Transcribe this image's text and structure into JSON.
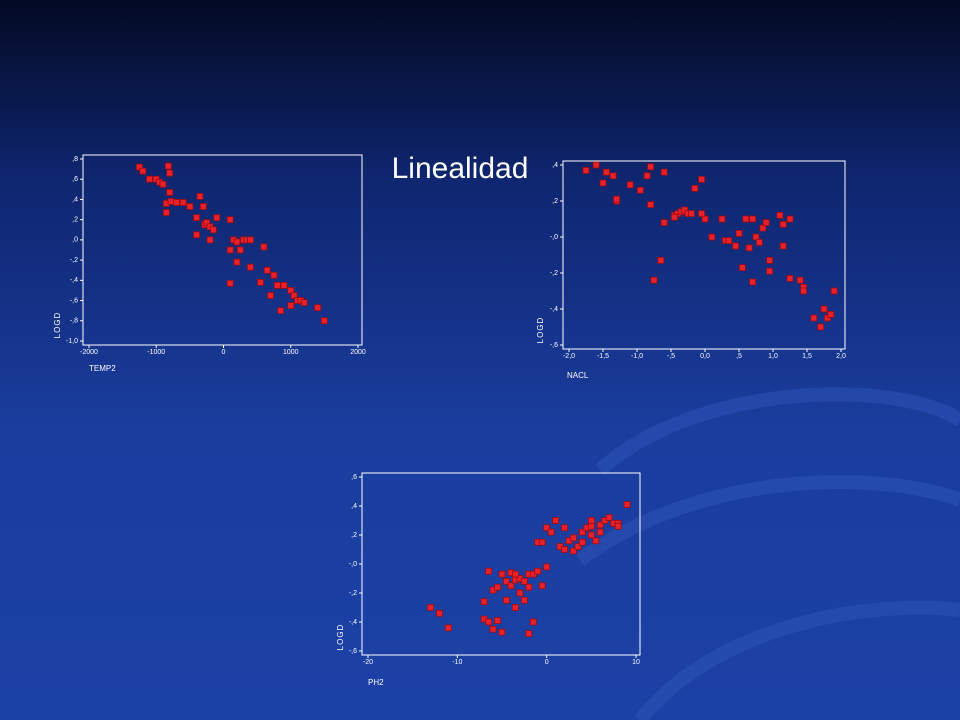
{
  "slide": {
    "title": "Linealidad"
  },
  "chart_data": [
    {
      "type": "scatter",
      "x_label": "TEMP2",
      "y_label": "LOGD",
      "color": "#e8202a",
      "x": [
        -1250,
        -1200,
        -1100,
        -1000,
        -950,
        -900,
        -820,
        -800,
        -850,
        -850,
        -800,
        -780,
        -700,
        -600,
        -500,
        -400,
        -350,
        -300,
        -280,
        -250,
        -200,
        -400,
        -200,
        -100,
        -150,
        100,
        100,
        150,
        200,
        200,
        100,
        250,
        300,
        350,
        400,
        400,
        550,
        600,
        650,
        700,
        750,
        800,
        850,
        900,
        1000,
        1000,
        1050,
        1100,
        1150,
        1200,
        1400,
        1500
      ],
      "values": [
        0.72,
        0.68,
        0.6,
        0.6,
        0.57,
        0.55,
        0.73,
        0.66,
        0.36,
        0.27,
        0.47,
        0.38,
        0.37,
        0.37,
        0.33,
        0.22,
        0.43,
        0.33,
        0.15,
        0.17,
        0.13,
        0.05,
        0.0,
        0.22,
        0.1,
        0.2,
        -0.1,
        0.0,
        -0.02,
        -0.22,
        -0.43,
        -0.1,
        0.0,
        0.0,
        0.0,
        -0.27,
        -0.42,
        -0.07,
        -0.3,
        -0.55,
        -0.35,
        -0.45,
        -0.7,
        -0.45,
        -0.5,
        -0.65,
        -0.55,
        -0.6,
        -0.6,
        -0.62,
        -0.67,
        -0.8
      ],
      "xlim": [
        -2000,
        2000
      ],
      "xticks": [
        -2000,
        -1000,
        0,
        1000,
        2000
      ],
      "ylim": [
        -1.0,
        0.8
      ],
      "yticks": [
        {
          "value": 0.8,
          "label": ",8"
        },
        {
          "value": 0.6,
          "label": ",6"
        },
        {
          "value": 0.4,
          "label": ",4"
        },
        {
          "value": 0.2,
          "label": ",2"
        },
        {
          "value": 0.0,
          "label": ",0"
        },
        {
          "value": -0.2,
          "label": "-,2"
        },
        {
          "value": -0.4,
          "label": "-,4"
        },
        {
          "value": -0.6,
          "label": "-,6"
        },
        {
          "value": -0.8,
          "label": "-,8"
        },
        {
          "value": -1.0,
          "label": "-1,0"
        }
      ]
    },
    {
      "type": "scatter",
      "x_label": "NACL",
      "y_label": "LOGD",
      "color": "#e8202a",
      "x": [
        -1.75,
        -1.6,
        -1.5,
        -1.45,
        -1.35,
        -1.3,
        -1.3,
        -1.1,
        -0.95,
        -0.85,
        -0.8,
        -0.8,
        -0.6,
        -0.6,
        -0.45,
        -0.4,
        -0.35,
        -0.3,
        -0.25,
        -0.2,
        -0.15,
        -0.05,
        -0.45,
        0.0,
        -0.05,
        0.1,
        0.25,
        0.3,
        0.35,
        0.45,
        0.5,
        0.6,
        0.65,
        0.7,
        0.75,
        0.8,
        0.85,
        0.9,
        0.55,
        0.7,
        0.95,
        0.95,
        1.1,
        1.15,
        1.15,
        1.25,
        1.25,
        1.4,
        -0.65,
        -0.75,
        1.45,
        1.45,
        1.6,
        1.7,
        1.75,
        1.8,
        1.85,
        1.9
      ],
      "values": [
        0.37,
        0.4,
        0.3,
        0.36,
        0.34,
        0.2,
        0.21,
        0.29,
        0.26,
        0.34,
        0.39,
        0.18,
        0.36,
        0.08,
        0.12,
        0.13,
        0.14,
        0.15,
        0.13,
        0.13,
        0.27,
        0.32,
        0.11,
        0.1,
        0.13,
        0.0,
        0.1,
        -0.02,
        -0.02,
        -0.05,
        0.02,
        0.1,
        -0.06,
        0.1,
        0.0,
        -0.03,
        0.05,
        0.08,
        -0.17,
        -0.25,
        -0.13,
        -0.19,
        0.12,
        0.07,
        -0.05,
        -0.23,
        0.1,
        -0.24,
        -0.13,
        -0.24,
        -0.28,
        -0.3,
        -0.45,
        -0.5,
        -0.4,
        -0.45,
        -0.43,
        -0.3
      ],
      "xlim": [
        -2.0,
        2.0
      ],
      "xticks": [
        {
          "value": -2.0,
          "label": "-2,0"
        },
        {
          "value": -1.5,
          "label": "-1,5"
        },
        {
          "value": -1.0,
          "label": "-1,0"
        },
        {
          "value": -0.5,
          "label": "-,5"
        },
        {
          "value": 0.0,
          "label": "0,0"
        },
        {
          "value": 0.5,
          "label": ",5"
        },
        {
          "value": 1.0,
          "label": "1,0"
        },
        {
          "value": 1.5,
          "label": "1,5"
        },
        {
          "value": 2.0,
          "label": "2,0"
        }
      ],
      "ylim": [
        -0.6,
        0.4
      ],
      "yticks": [
        {
          "value": 0.4,
          "label": ",4"
        },
        {
          "value": 0.2,
          "label": ",2"
        },
        {
          "value": 0.0,
          "label": "-,0"
        },
        {
          "value": -0.2,
          "label": "-,2"
        },
        {
          "value": -0.4,
          "label": "-,4"
        },
        {
          "value": -0.6,
          "label": "-,6"
        }
      ]
    },
    {
      "type": "scatter",
      "x_label": "PH2",
      "y_label": "LOGD",
      "color": "#e8202a",
      "x": [
        -13,
        -12,
        -11,
        -7,
        -7,
        -6.5,
        -6,
        -5.5,
        -5,
        -6.5,
        -6,
        -5.5,
        -5,
        -4.5,
        -4,
        -4,
        -3.5,
        -3,
        -3,
        -2.5,
        -2,
        -2,
        -1.5,
        -1,
        -1,
        -0.5,
        -1.5,
        -3.5,
        -2.5,
        0,
        0,
        0.5,
        1,
        1.5,
        2,
        2.5,
        3,
        3,
        3.5,
        4,
        4,
        4.5,
        5,
        5,
        5.5,
        6,
        6,
        6.5,
        7,
        7.5,
        8,
        8,
        9,
        -0.5,
        -2,
        -4.5,
        -3.5,
        5,
        2
      ],
      "values": [
        -0.3,
        -0.34,
        -0.44,
        -0.26,
        -0.38,
        -0.4,
        -0.45,
        -0.39,
        -0.47,
        -0.05,
        -0.18,
        -0.16,
        -0.07,
        -0.12,
        -0.06,
        -0.15,
        -0.11,
        -0.1,
        -0.2,
        -0.12,
        -0.16,
        -0.07,
        -0.07,
        -0.05,
        0.15,
        0.15,
        -0.4,
        -0.3,
        -0.25,
        0.25,
        -0.02,
        0.22,
        0.3,
        0.12,
        0.1,
        0.16,
        0.09,
        0.18,
        0.12,
        0.15,
        0.22,
        0.25,
        0.26,
        0.3,
        0.16,
        0.22,
        0.27,
        0.3,
        0.32,
        0.28,
        0.28,
        0.26,
        0.41,
        -0.15,
        -0.48,
        -0.25,
        -0.07,
        0.2,
        0.25
      ],
      "xlim": [
        -20,
        10
      ],
      "xticks": [
        -20,
        -10,
        0,
        10
      ],
      "ylim": [
        -0.6,
        0.6
      ],
      "yticks": [
        {
          "value": 0.6,
          "label": ",6"
        },
        {
          "value": 0.4,
          "label": ",4"
        },
        {
          "value": 0.2,
          "label": ",2"
        },
        {
          "value": 0.0,
          "label": "-,0"
        },
        {
          "value": -0.2,
          "label": "-,2"
        },
        {
          "value": -0.4,
          "label": "-,4"
        },
        {
          "value": -0.6,
          "label": "-,6"
        }
      ]
    }
  ]
}
